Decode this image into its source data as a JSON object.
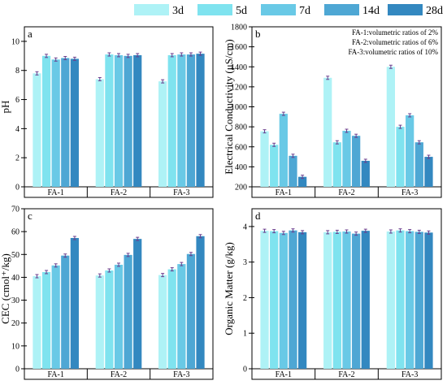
{
  "colors": {
    "3d": "#aef2f6",
    "5d": "#7fe3ef",
    "7d": "#69c9e6",
    "14d": "#4ea7d4",
    "28d": "#3388c0",
    "error": "#6b3f8e"
  },
  "legend": {
    "position": "top",
    "entries": [
      "3d",
      "5d",
      "7d",
      "14d",
      "28d"
    ]
  },
  "chart_data": [
    {
      "type": "bar",
      "panel_letter": "a",
      "ylabel": "pH",
      "ylim": [
        0,
        11
      ],
      "yticks": [
        0,
        2,
        4,
        6,
        8,
        10
      ],
      "categories": [
        "FA-1",
        "FA-2",
        "FA-3"
      ],
      "series": [
        {
          "name": "3d",
          "values": [
            7.8,
            7.4,
            7.25
          ]
        },
        {
          "name": "5d",
          "values": [
            9.0,
            9.1,
            9.05
          ]
        },
        {
          "name": "7d",
          "values": [
            8.75,
            9.05,
            9.1
          ]
        },
        {
          "name": "14d",
          "values": [
            8.85,
            9.0,
            9.1
          ]
        },
        {
          "name": "28d",
          "values": [
            8.8,
            9.05,
            9.15
          ]
        }
      ]
    },
    {
      "type": "bar",
      "panel_letter": "b",
      "ylabel": "Electrical Conductivity (μS/cm)",
      "ylim": [
        200,
        1800
      ],
      "yticks": [
        200,
        400,
        600,
        800,
        1000,
        1200,
        1400,
        1600,
        1800
      ],
      "categories": [
        "FA-1",
        "FA-2",
        "FA-3"
      ],
      "notes": [
        "FA-1:volumetric ratios of 2%",
        "FA-2:volumetric ratios of 6%",
        "FA-3:volumetric ratios of 10%"
      ],
      "series": [
        {
          "name": "3d",
          "values": [
            755,
            1290,
            1400
          ]
        },
        {
          "name": "5d",
          "values": [
            620,
            645,
            800
          ]
        },
        {
          "name": "7d",
          "values": [
            930,
            760,
            915
          ]
        },
        {
          "name": "14d",
          "values": [
            510,
            710,
            645
          ]
        },
        {
          "name": "28d",
          "values": [
            300,
            460,
            500
          ]
        }
      ]
    },
    {
      "type": "bar",
      "panel_letter": "c",
      "ylabel": "CEC (cmol⁺/kg)",
      "ylim": [
        0,
        70
      ],
      "yticks": [
        0,
        10,
        20,
        30,
        40,
        50,
        60,
        70
      ],
      "categories": [
        "FA-1",
        "FA-2",
        "FA-3"
      ],
      "series": [
        {
          "name": "3d",
          "values": [
            40.5,
            40.8,
            41.0
          ]
        },
        {
          "name": "5d",
          "values": [
            42.3,
            43.0,
            43.5
          ]
        },
        {
          "name": "7d",
          "values": [
            45.2,
            45.5,
            45.8
          ]
        },
        {
          "name": "14d",
          "values": [
            49.5,
            49.8,
            50.2
          ]
        },
        {
          "name": "28d",
          "values": [
            57.2,
            56.8,
            58.0
          ]
        }
      ]
    },
    {
      "type": "bar",
      "panel_letter": "d",
      "ylabel": "Organic Matter (g/kg)",
      "ylim": [
        0,
        4.5
      ],
      "yticks": [
        0,
        1,
        2,
        3,
        4
      ],
      "categories": [
        "FA-1",
        "FA-2",
        "FA-3"
      ],
      "series": [
        {
          "name": "3d",
          "values": [
            3.88,
            3.84,
            3.86
          ]
        },
        {
          "name": "5d",
          "values": [
            3.87,
            3.85,
            3.89
          ]
        },
        {
          "name": "7d",
          "values": [
            3.82,
            3.86,
            3.87
          ]
        },
        {
          "name": "14d",
          "values": [
            3.89,
            3.8,
            3.85
          ]
        },
        {
          "name": "28d",
          "values": [
            3.84,
            3.88,
            3.83
          ]
        }
      ]
    }
  ]
}
